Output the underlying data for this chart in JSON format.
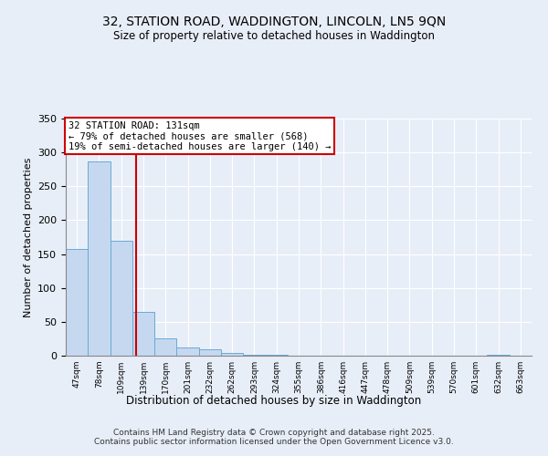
{
  "title1": "32, STATION ROAD, WADDINGTON, LINCOLN, LN5 9QN",
  "title2": "Size of property relative to detached houses in Waddington",
  "xlabel": "Distribution of detached houses by size in Waddington",
  "ylabel": "Number of detached properties",
  "categories": [
    "47sqm",
    "78sqm",
    "109sqm",
    "139sqm",
    "170sqm",
    "201sqm",
    "232sqm",
    "262sqm",
    "293sqm",
    "324sqm",
    "355sqm",
    "386sqm",
    "416sqm",
    "447sqm",
    "478sqm",
    "509sqm",
    "539sqm",
    "570sqm",
    "601sqm",
    "632sqm",
    "663sqm"
  ],
  "values": [
    157,
    287,
    170,
    65,
    25,
    12,
    9,
    4,
    2,
    1,
    0,
    0,
    0,
    0,
    0,
    0,
    0,
    0,
    0,
    1,
    0
  ],
  "bar_color": "#c5d8f0",
  "bar_edge_color": "#6aaad4",
  "ylim": [
    0,
    350
  ],
  "vline_x": 2.68,
  "vline_color": "#cc0000",
  "annotation_text": "32 STATION ROAD: 131sqm\n← 79% of detached houses are smaller (568)\n19% of semi-detached houses are larger (140) →",
  "annotation_box_color": "white",
  "annotation_box_edge": "#cc0000",
  "footer1": "Contains HM Land Registry data © Crown copyright and database right 2025.",
  "footer2": "Contains public sector information licensed under the Open Government Licence v3.0.",
  "bg_color": "#e8eef8",
  "plot_bg_color": "#e8eef8",
  "grid_color": "#ffffff",
  "yticks": [
    0,
    50,
    100,
    150,
    200,
    250,
    300,
    350
  ]
}
